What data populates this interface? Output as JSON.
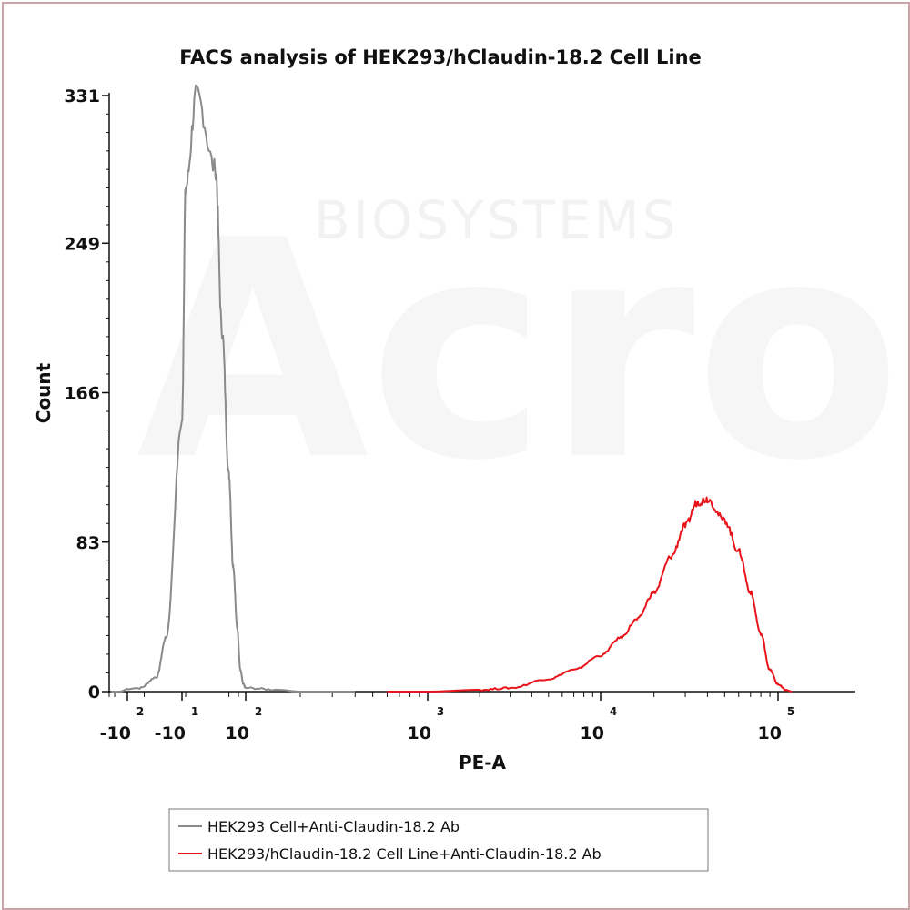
{
  "chart_data": {
    "type": "line",
    "title": "FACS analysis of HEK293/hClaudin-18.2 Cell Line",
    "xlabel": "PE-A",
    "ylabel": "Count",
    "x_scale": "biexponential",
    "ylim": [
      0,
      331
    ],
    "y_ticks": [
      0,
      83,
      166,
      249,
      331
    ],
    "x_ticks": [
      {
        "value": -100,
        "base": "-10",
        "exp": "2"
      },
      {
        "value": -10,
        "base": "-10",
        "exp": "1"
      },
      {
        "value": 100,
        "base": "10",
        "exp": "2"
      },
      {
        "value": 1000,
        "base": "10",
        "exp": "3"
      },
      {
        "value": 10000,
        "base": "10",
        "exp": "4"
      },
      {
        "value": 100000,
        "base": "10",
        "exp": "5"
      }
    ],
    "legend_position": "bottom",
    "series": [
      {
        "name": "HEK293 Cell+Anti-Claudin-18.2 Ab",
        "color": "#8a8a8a",
        "points": [
          [
            -800,
            0
          ],
          [
            -300,
            0
          ],
          [
            -60,
            2
          ],
          [
            -30,
            8
          ],
          [
            -20,
            30
          ],
          [
            -10,
            150
          ],
          [
            -5,
            280
          ],
          [
            0,
            331
          ],
          [
            5,
            290
          ],
          [
            10,
            200
          ],
          [
            20,
            120
          ],
          [
            30,
            70
          ],
          [
            45,
            35
          ],
          [
            60,
            12
          ],
          [
            80,
            4
          ],
          [
            100,
            2
          ],
          [
            150,
            1
          ],
          [
            200,
            0
          ],
          [
            400,
            0
          ]
        ]
      },
      {
        "name": "HEK293/hClaudin-18.2 Cell Line+Anti-Claudin-18.2 Ab",
        "color": "#e8141a",
        "points": [
          [
            600,
            0
          ],
          [
            1000,
            0
          ],
          [
            2000,
            1
          ],
          [
            3000,
            2
          ],
          [
            5000,
            7
          ],
          [
            7000,
            12
          ],
          [
            10000,
            20
          ],
          [
            13000,
            30
          ],
          [
            16000,
            40
          ],
          [
            20000,
            55
          ],
          [
            25000,
            75
          ],
          [
            30000,
            92
          ],
          [
            35000,
            105
          ],
          [
            40000,
            107
          ],
          [
            50000,
            95
          ],
          [
            60000,
            78
          ],
          [
            70000,
            55
          ],
          [
            80000,
            32
          ],
          [
            90000,
            12
          ],
          [
            100000,
            4
          ],
          [
            110000,
            1
          ],
          [
            120000,
            0
          ]
        ]
      }
    ]
  },
  "watermark": {
    "text": "BIOSYSTEMS",
    "logo_text": "Acro"
  }
}
